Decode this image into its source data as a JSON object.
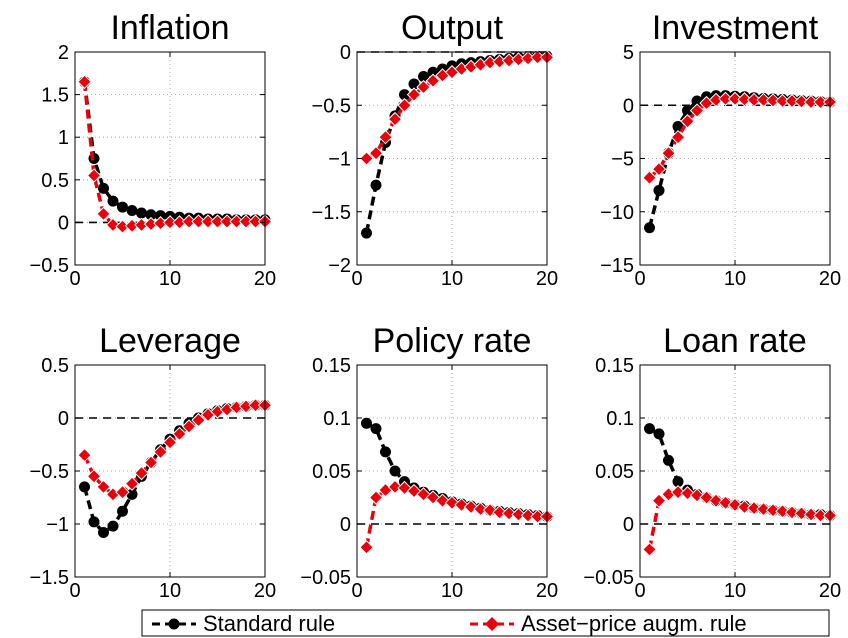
{
  "legend": {
    "entries": [
      {
        "label": "Standard rule",
        "color": "#000000",
        "marker": "circle"
      },
      {
        "label": "Asset−price augm. rule",
        "color": "#e8000b",
        "marker": "diamond"
      }
    ]
  },
  "chart_data": [
    {
      "type": "line",
      "title": "Inflation",
      "xlim": [
        0,
        20
      ],
      "ylim": [
        -0.5,
        2
      ],
      "xticks": [
        0,
        10,
        20
      ],
      "xtick_labels": [
        "0",
        "10",
        "20"
      ],
      "yticks": [
        -0.5,
        0,
        0.5,
        1,
        1.5,
        2
      ],
      "ytick_labels": [
        "−0.5",
        "0",
        "0.5",
        "1",
        "1.5",
        "2"
      ],
      "grid": true,
      "zero_line": true,
      "x": [
        1,
        2,
        3,
        4,
        5,
        6,
        7,
        8,
        9,
        10,
        11,
        12,
        13,
        14,
        15,
        16,
        17,
        18,
        19,
        20
      ],
      "series": [
        {
          "name": "Standard rule",
          "color": "#000000",
          "marker": "circle",
          "values": [
            1.65,
            0.75,
            0.4,
            0.25,
            0.18,
            0.14,
            0.11,
            0.09,
            0.08,
            0.07,
            0.06,
            0.05,
            0.05,
            0.04,
            0.04,
            0.04,
            0.03,
            0.03,
            0.03,
            0.03
          ]
        },
        {
          "name": "Asset−price augm. rule",
          "color": "#e8000b",
          "marker": "diamond",
          "values": [
            1.65,
            0.55,
            0.1,
            -0.03,
            -0.05,
            -0.04,
            -0.03,
            -0.02,
            -0.01,
            0.0,
            0.0,
            0.01,
            0.01,
            0.01,
            0.01,
            0.01,
            0.01,
            0.01,
            0.01,
            0.01
          ]
        }
      ]
    },
    {
      "type": "line",
      "title": "Output",
      "xlim": [
        0,
        20
      ],
      "ylim": [
        -2,
        0
      ],
      "xticks": [
        0,
        10,
        20
      ],
      "xtick_labels": [
        "0",
        "10",
        "20"
      ],
      "yticks": [
        -2,
        -1.5,
        -1,
        -0.5,
        0
      ],
      "ytick_labels": [
        "−2",
        "−1.5",
        "−1",
        "−0.5",
        "0"
      ],
      "grid": true,
      "zero_line": true,
      "x": [
        1,
        2,
        3,
        4,
        5,
        6,
        7,
        8,
        9,
        10,
        11,
        12,
        13,
        14,
        15,
        16,
        17,
        18,
        19,
        20
      ],
      "series": [
        {
          "name": "Standard rule",
          "color": "#000000",
          "marker": "circle",
          "values": [
            -1.7,
            -1.25,
            -0.85,
            -0.6,
            -0.4,
            -0.3,
            -0.23,
            -0.19,
            -0.16,
            -0.13,
            -0.11,
            -0.1,
            -0.09,
            -0.08,
            -0.07,
            -0.06,
            -0.05,
            -0.05,
            -0.04,
            -0.04
          ]
        },
        {
          "name": "Asset−price augm. rule",
          "color": "#e8000b",
          "marker": "diamond",
          "values": [
            -1.0,
            -0.95,
            -0.8,
            -0.63,
            -0.5,
            -0.4,
            -0.33,
            -0.27,
            -0.22,
            -0.19,
            -0.16,
            -0.14,
            -0.12,
            -0.1,
            -0.09,
            -0.08,
            -0.07,
            -0.06,
            -0.05,
            -0.05
          ]
        }
      ]
    },
    {
      "type": "line",
      "title": "Investment",
      "xlim": [
        0,
        20
      ],
      "ylim": [
        -15,
        5
      ],
      "xticks": [
        0,
        10,
        20
      ],
      "xtick_labels": [
        "0",
        "10",
        "20"
      ],
      "yticks": [
        -15,
        -10,
        -5,
        0,
        5
      ],
      "ytick_labels": [
        "−15",
        "−10",
        "−5",
        "0",
        "5"
      ],
      "grid": true,
      "zero_line": true,
      "x": [
        1,
        2,
        3,
        4,
        5,
        6,
        7,
        8,
        9,
        10,
        11,
        12,
        13,
        14,
        15,
        16,
        17,
        18,
        19,
        20
      ],
      "series": [
        {
          "name": "Standard rule",
          "color": "#000000",
          "marker": "circle",
          "values": [
            -11.5,
            -8.0,
            -4.5,
            -2.0,
            -0.5,
            0.4,
            0.8,
            0.9,
            0.9,
            0.85,
            0.8,
            0.7,
            0.65,
            0.6,
            0.55,
            0.5,
            0.45,
            0.4,
            0.35,
            0.3
          ]
        },
        {
          "name": "Asset−price augm. rule",
          "color": "#e8000b",
          "marker": "diamond",
          "values": [
            -6.8,
            -6.0,
            -4.5,
            -3.0,
            -1.5,
            -0.5,
            0.2,
            0.5,
            0.6,
            0.6,
            0.55,
            0.5,
            0.5,
            0.45,
            0.4,
            0.4,
            0.35,
            0.3,
            0.3,
            0.3
          ]
        }
      ]
    },
    {
      "type": "line",
      "title": "Leverage",
      "xlim": [
        0,
        20
      ],
      "ylim": [
        -1.5,
        0.5
      ],
      "xticks": [
        0,
        10,
        20
      ],
      "xtick_labels": [
        "0",
        "10",
        "20"
      ],
      "yticks": [
        -1.5,
        -1,
        -0.5,
        0,
        0.5
      ],
      "ytick_labels": [
        "−1.5",
        "−1",
        "−0.5",
        "0",
        "0.5"
      ],
      "grid": true,
      "zero_line": true,
      "x": [
        1,
        2,
        3,
        4,
        5,
        6,
        7,
        8,
        9,
        10,
        11,
        12,
        13,
        14,
        15,
        16,
        17,
        18,
        19,
        20
      ],
      "series": [
        {
          "name": "Standard rule",
          "color": "#000000",
          "marker": "circle",
          "values": [
            -0.65,
            -0.98,
            -1.08,
            -1.02,
            -0.88,
            -0.72,
            -0.55,
            -0.42,
            -0.3,
            -0.2,
            -0.12,
            -0.05,
            0.0,
            0.04,
            0.07,
            0.09,
            0.1,
            0.11,
            0.12,
            0.12
          ]
        },
        {
          "name": "Asset−price augm. rule",
          "color": "#e8000b",
          "marker": "diamond",
          "values": [
            -0.35,
            -0.55,
            -0.65,
            -0.72,
            -0.7,
            -0.62,
            -0.52,
            -0.42,
            -0.32,
            -0.23,
            -0.15,
            -0.08,
            -0.02,
            0.03,
            0.06,
            0.08,
            0.1,
            0.11,
            0.12,
            0.12
          ]
        }
      ]
    },
    {
      "type": "line",
      "title": "Policy rate",
      "xlim": [
        0,
        20
      ],
      "ylim": [
        -0.05,
        0.15
      ],
      "xticks": [
        0,
        10,
        20
      ],
      "xtick_labels": [
        "0",
        "10",
        "20"
      ],
      "yticks": [
        -0.05,
        0,
        0.05,
        0.1,
        0.15
      ],
      "ytick_labels": [
        "−0.05",
        "0",
        "0.05",
        "0.1",
        "0.15"
      ],
      "grid": true,
      "zero_line": true,
      "x": [
        1,
        2,
        3,
        4,
        5,
        6,
        7,
        8,
        9,
        10,
        11,
        12,
        13,
        14,
        15,
        16,
        17,
        18,
        19,
        20
      ],
      "series": [
        {
          "name": "Standard rule",
          "color": "#000000",
          "marker": "circle",
          "values": [
            0.095,
            0.09,
            0.068,
            0.05,
            0.04,
            0.034,
            0.03,
            0.027,
            0.024,
            0.021,
            0.019,
            0.017,
            0.015,
            0.013,
            0.012,
            0.011,
            0.01,
            0.009,
            0.008,
            0.007
          ]
        },
        {
          "name": "Asset−price augm. rule",
          "color": "#e8000b",
          "marker": "diamond",
          "values": [
            -0.022,
            0.025,
            0.032,
            0.035,
            0.034,
            0.031,
            0.028,
            0.025,
            0.022,
            0.02,
            0.018,
            0.016,
            0.014,
            0.013,
            0.011,
            0.01,
            0.009,
            0.008,
            0.007,
            0.007
          ]
        }
      ]
    },
    {
      "type": "line",
      "title": "Loan rate",
      "xlim": [
        0,
        20
      ],
      "ylim": [
        -0.05,
        0.15
      ],
      "xticks": [
        0,
        10,
        20
      ],
      "xtick_labels": [
        "0",
        "10",
        "20"
      ],
      "yticks": [
        -0.05,
        0,
        0.05,
        0.1,
        0.15
      ],
      "ytick_labels": [
        "−0.05",
        "0",
        "0.05",
        "0.1",
        "0.15"
      ],
      "grid": true,
      "zero_line": true,
      "x": [
        1,
        2,
        3,
        4,
        5,
        6,
        7,
        8,
        9,
        10,
        11,
        12,
        13,
        14,
        15,
        16,
        17,
        18,
        19,
        20
      ],
      "series": [
        {
          "name": "Standard rule",
          "color": "#000000",
          "marker": "circle",
          "values": [
            0.09,
            0.085,
            0.06,
            0.04,
            0.032,
            0.028,
            0.025,
            0.022,
            0.02,
            0.018,
            0.017,
            0.015,
            0.014,
            0.013,
            0.012,
            0.011,
            0.01,
            0.009,
            0.009,
            0.008
          ]
        },
        {
          "name": "Asset−price augm. rule",
          "color": "#e8000b",
          "marker": "diamond",
          "values": [
            -0.024,
            0.022,
            0.028,
            0.03,
            0.029,
            0.027,
            0.025,
            0.022,
            0.02,
            0.018,
            0.016,
            0.015,
            0.014,
            0.013,
            0.012,
            0.011,
            0.01,
            0.009,
            0.008,
            0.008
          ]
        }
      ]
    }
  ]
}
